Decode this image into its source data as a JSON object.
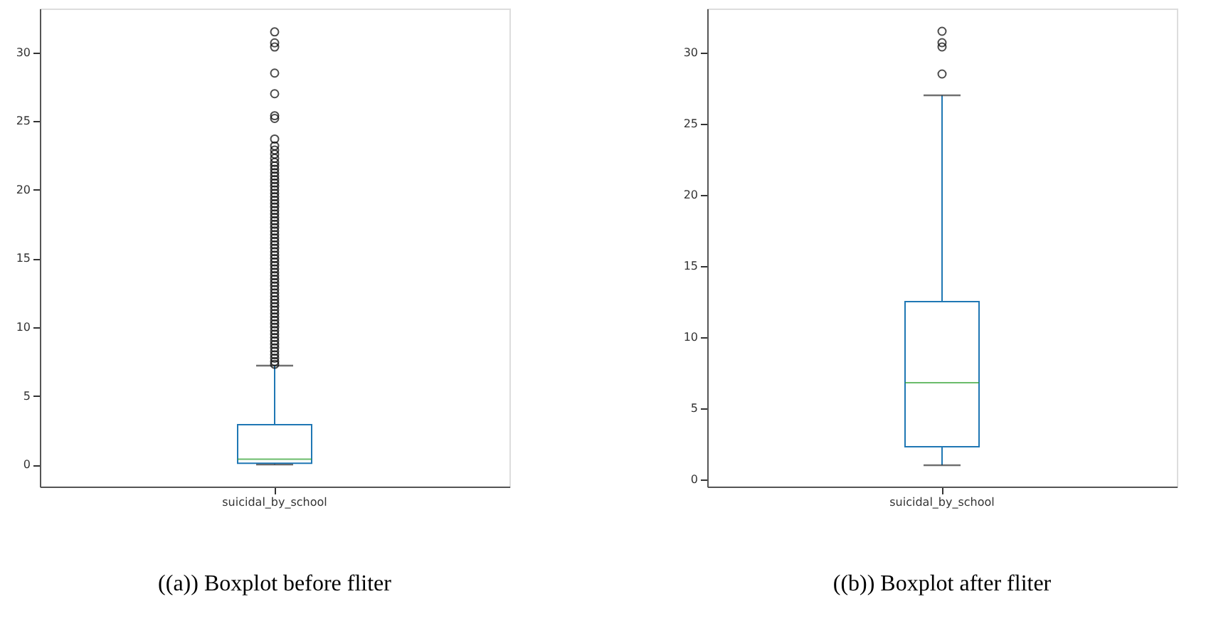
{
  "chart_data": [
    {
      "type": "box",
      "categories": [
        "suicidal_by_school"
      ],
      "ylim": [
        -1.6,
        33.2
      ],
      "yticks": [
        0,
        5,
        10,
        15,
        20,
        25,
        30
      ],
      "grid": false,
      "annotations": [
        "((a)) Boxplot before fliter"
      ],
      "boxes": [
        {
          "low": 0,
          "q1": 0.1,
          "median": 0.4,
          "q3": 2.9,
          "high": 7.2,
          "outliers": [
            7.3,
            7.5,
            7.75,
            8.0,
            8.25,
            8.5,
            8.75,
            9.0,
            9.25,
            9.5,
            9.75,
            10.0,
            10.25,
            10.5,
            10.75,
            11.0,
            11.25,
            11.5,
            11.75,
            12.0,
            12.25,
            12.5,
            12.75,
            13.0,
            13.25,
            13.5,
            13.75,
            14.0,
            14.25,
            14.5,
            14.75,
            15.0,
            15.25,
            15.5,
            15.75,
            16.0,
            16.25,
            16.5,
            16.75,
            17.0,
            17.25,
            17.5,
            17.75,
            18.0,
            18.25,
            18.5,
            18.75,
            19.0,
            19.25,
            19.5,
            19.75,
            20.0,
            20.25,
            20.5,
            20.75,
            21.0,
            21.25,
            21.5,
            21.75,
            22.0,
            22.3,
            22.6,
            22.9,
            23.2,
            23.7,
            25.2,
            25.4,
            27.0,
            28.5,
            30.4,
            30.7,
            31.5
          ]
        }
      ]
    },
    {
      "type": "box",
      "categories": [
        "suicidal_by_school"
      ],
      "ylim": [
        -0.5,
        33.1
      ],
      "yticks": [
        0,
        5,
        10,
        15,
        20,
        25,
        30
      ],
      "grid": false,
      "annotations": [
        "((b)) Boxplot after fliter"
      ],
      "boxes": [
        {
          "low": 1.0,
          "q1": 2.3,
          "median": 6.8,
          "q3": 12.5,
          "high": 27.0,
          "outliers": [
            28.5,
            30.4,
            30.7,
            31.5
          ]
        }
      ]
    }
  ]
}
